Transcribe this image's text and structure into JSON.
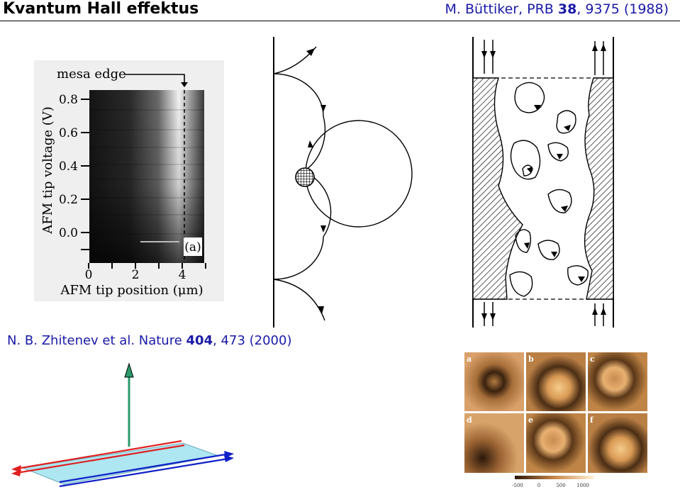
{
  "header": {
    "title": "Kvantum Hall effektus",
    "reference": {
      "prefix": "M. Büttiker, PRB ",
      "volume": "38",
      "rest": ",  9375 (1988)"
    }
  },
  "afm_figure": {
    "mesa_label": "mesa edge",
    "ylabel": "AFM tip voltage (V)",
    "xlabel": "AFM tip position (μm)",
    "panel_label": "(a)",
    "yticks": [
      "0.8",
      "0.6",
      "0.4",
      "0.2",
      "0.0"
    ],
    "xticks": [
      "0",
      "2",
      "4"
    ]
  },
  "reference2": {
    "prefix": "N. B. Zhitenev et al. Nature ",
    "volume": "404",
    "rest": ",  473 (2000)"
  },
  "photo_panels": {
    "labels": [
      "a",
      "b",
      "c",
      "d",
      "e",
      "f"
    ],
    "colorbar_ticks": [
      "-500",
      "0",
      "500",
      "1000"
    ]
  },
  "colors": {
    "reference_text": "#1a1aa8",
    "photo_tone": "#c8874a",
    "arrow_red": "#e02020",
    "arrow_blue": "#1020c8",
    "arrow_green": "#2a9a6a",
    "plane_fill": "#aee6f2"
  }
}
